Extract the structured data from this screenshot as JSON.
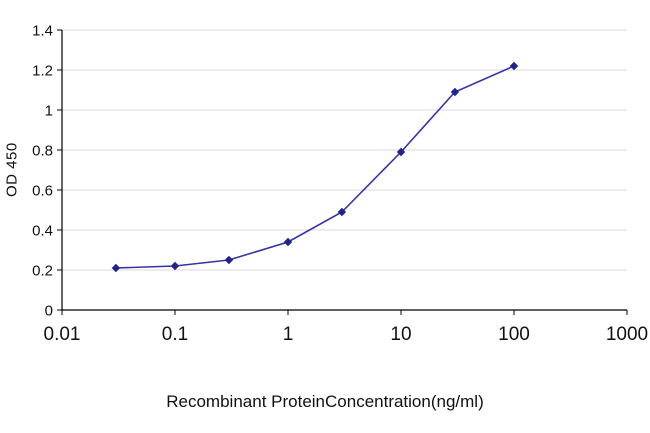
{
  "chart_data": {
    "type": "line",
    "title": "",
    "xlabel": "Recombinant ProteinConcentration(ng/ml)",
    "ylabel": "OD 450",
    "x_scale": "log",
    "xlim": [
      0.01,
      1000
    ],
    "ylim": [
      0,
      1.4
    ],
    "x_ticks": [
      0.01,
      0.1,
      1,
      10,
      100,
      1000
    ],
    "x_tick_labels": [
      "0.01",
      "0.1",
      "1",
      "10",
      "100",
      "1000"
    ],
    "y_ticks": [
      0,
      0.2,
      0.4,
      0.6,
      0.8,
      1,
      1.2,
      1.4
    ],
    "y_tick_labels": [
      "0",
      "0.2",
      "0.4",
      "0.6",
      "0.8",
      "1",
      "1.2",
      "1.4"
    ],
    "grid": true,
    "grid_color": "#d9d9d9",
    "axis_color": "#000000",
    "line_color": "#3434a6",
    "marker_color": "#22228e",
    "marker": "diamond",
    "series": [
      {
        "name": "OD 450",
        "x": [
          0.03,
          0.1,
          0.3,
          1,
          3,
          10,
          30,
          100
        ],
        "values": [
          0.21,
          0.22,
          0.25,
          0.34,
          0.49,
          0.79,
          1.09,
          1.22
        ]
      }
    ],
    "legend_position": "none"
  }
}
